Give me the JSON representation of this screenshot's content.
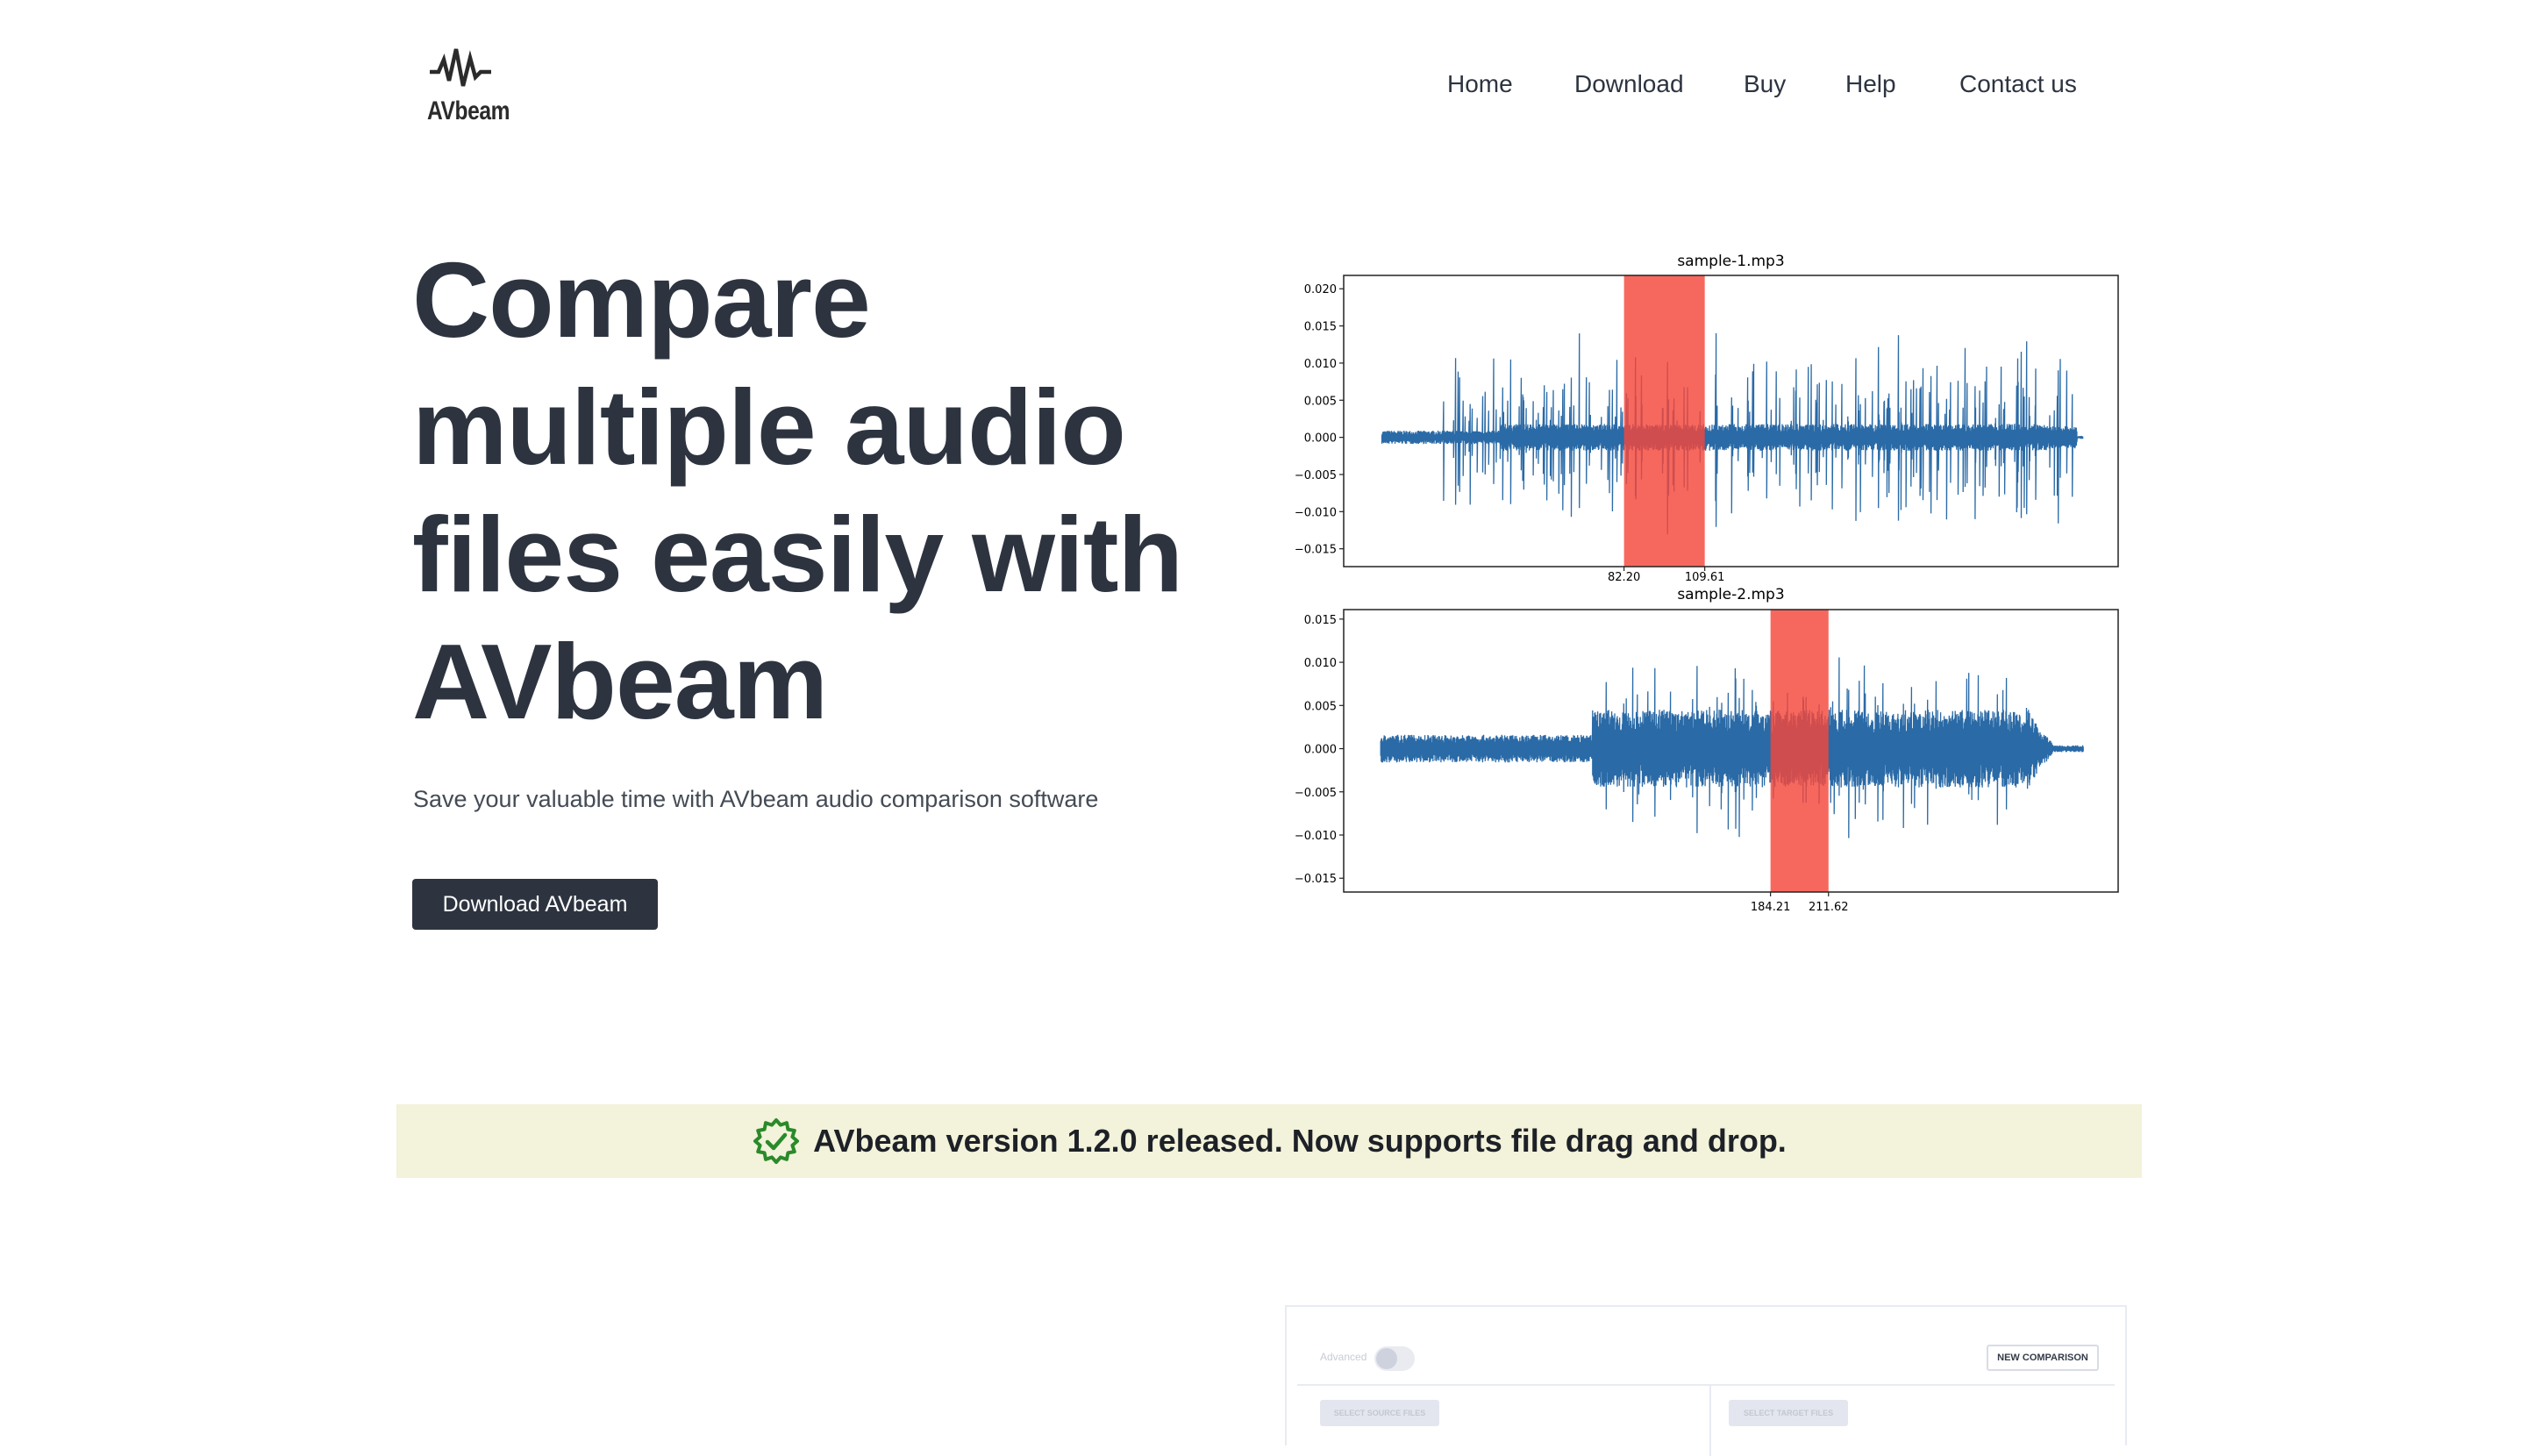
{
  "header": {
    "logo_text": "AVbeam",
    "nav": [
      {
        "label": "Home"
      },
      {
        "label": "Download"
      },
      {
        "label": "Buy"
      },
      {
        "label": "Help"
      },
      {
        "label": "Contact us"
      }
    ]
  },
  "hero": {
    "title_lines": [
      "Compare",
      "multiple audio",
      "files easily with",
      "AVbeam"
    ],
    "subtitle": "Save your valuable time with AVbeam audio comparison software",
    "cta_label": "Download AVbeam"
  },
  "chart_data": [
    {
      "type": "line",
      "title": "sample-1.mp3",
      "ylim": [
        -0.0174,
        0.0218
      ],
      "yticks": [
        "0.020",
        "0.015",
        "0.010",
        "0.005",
        "0.000",
        "−0.005",
        "−0.010",
        "−0.015"
      ],
      "ytick_values": [
        0.02,
        0.015,
        0.01,
        0.005,
        0,
        -0.005,
        -0.01,
        -0.015
      ],
      "xlim": [
        -13,
        250
      ],
      "duration": 238,
      "xticks": [
        "82.20",
        "109.61"
      ],
      "xtick_values": [
        82.2,
        109.61
      ],
      "highlight": [
        82.2,
        109.61
      ],
      "style": "sparse-spikes"
    },
    {
      "type": "line",
      "title": "sample-2.mp3",
      "ylim": [
        -0.0166,
        0.0161
      ],
      "yticks": [
        "0.015",
        "0.010",
        "0.005",
        "0.000",
        "−0.005",
        "−0.010",
        "−0.015"
      ],
      "ytick_values": [
        0.015,
        0.01,
        0.005,
        0,
        -0.005,
        -0.01,
        -0.015
      ],
      "xlim": [
        -17.5,
        348.5
      ],
      "duration": 332,
      "xticks": [
        "184.21",
        "211.62"
      ],
      "xtick_values": [
        184.21,
        211.62
      ],
      "highlight": [
        184.21,
        211.62
      ],
      "style": "dense"
    }
  ],
  "colors": {
    "wave": "#2a6aa6",
    "highlight": "#f4473a",
    "banner_bg": "#f3f2da",
    "badge": "#2a8a2a",
    "dark": "#2d3440"
  },
  "banner": {
    "icon": "verified-badge-icon",
    "text": "AVbeam version 1.2.0 released. Now supports file drag and drop."
  },
  "app_preview": {
    "advanced_label": "Advanced",
    "new_comparison_label": "NEW COMPARISON",
    "select_source_label": "SELECT SOURCE FILES",
    "select_target_label": "SELECT TARGET FILES"
  }
}
